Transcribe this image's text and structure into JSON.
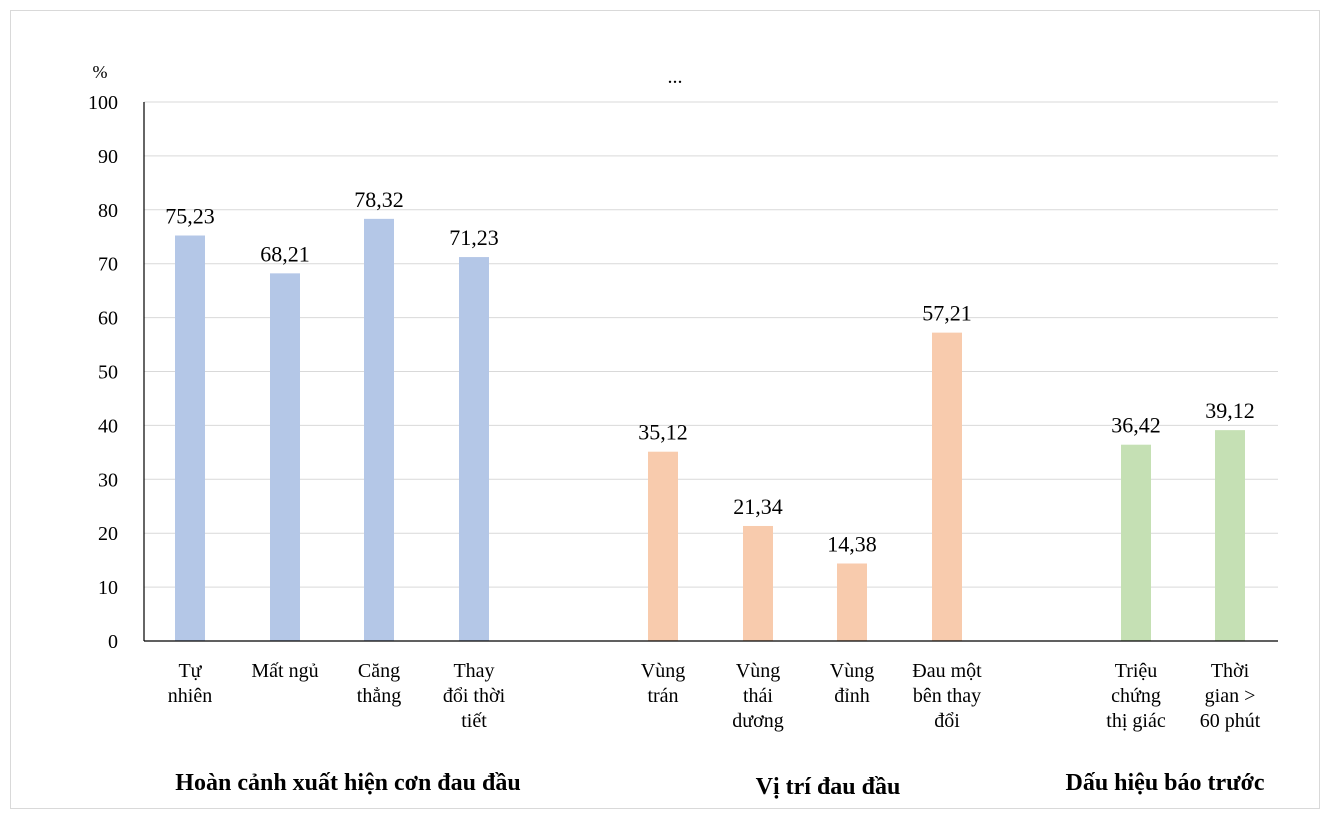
{
  "chart_data": {
    "type": "bar",
    "title": "...",
    "ylabel": "%",
    "ylim": [
      0,
      100
    ],
    "yticks": [
      0,
      10,
      20,
      30,
      40,
      50,
      60,
      70,
      80,
      90,
      100
    ],
    "grid": true,
    "groups": [
      {
        "name": "Hoàn cảnh xuất hiện cơn đau đầu",
        "color": "#b4c7e7",
        "categories": [
          [
            "Tự",
            "nhiên"
          ],
          [
            "Mất ngủ"
          ],
          [
            "Căng",
            "thẳng"
          ],
          [
            "Thay",
            "đổi thời",
            "tiết"
          ]
        ],
        "values": [
          75.23,
          68.21,
          78.32,
          71.23
        ],
        "labels": [
          "75,23",
          "68,21",
          "78,32",
          "71,23"
        ]
      },
      {
        "name": "Vị trí đau đầu",
        "color": "#f8cbad",
        "categories": [
          [
            "Vùng",
            "trán"
          ],
          [
            "Vùng",
            "thái",
            "dương"
          ],
          [
            "Vùng",
            "đỉnh"
          ],
          [
            "Đau một",
            "bên thay",
            "đổi"
          ]
        ],
        "values": [
          35.12,
          21.34,
          14.38,
          57.21
        ],
        "labels": [
          "35,12",
          "21,34",
          "14,38",
          "57,21"
        ]
      },
      {
        "name": "Dấu hiệu báo trước",
        "color": "#c5e0b4",
        "categories": [
          [
            "Triệu",
            "chứng",
            "thị giác"
          ],
          [
            "Thời",
            "gian >",
            "60 phút"
          ]
        ],
        "values": [
          36.42,
          39.12
        ],
        "labels": [
          "36,42",
          "39,12"
        ]
      }
    ]
  }
}
